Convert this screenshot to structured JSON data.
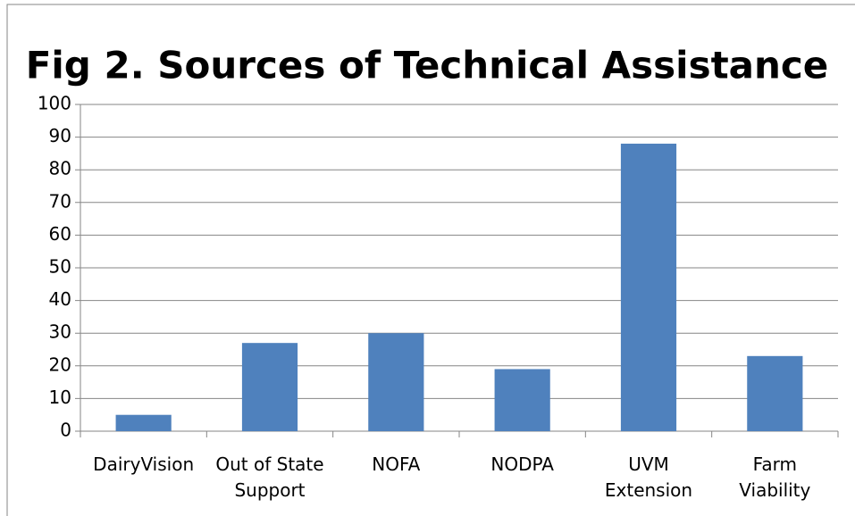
{
  "chart_data": {
    "type": "bar",
    "title": "Fig 2. Sources of Technical Assistance",
    "categories": [
      "DairyVision",
      "Out of State Support",
      "NOFA",
      "NODPA",
      "UVM Extension",
      "Farm Viability"
    ],
    "values": [
      5,
      27,
      30,
      19,
      88,
      23
    ],
    "color": "#4f81bd",
    "ylim": [
      0,
      100
    ],
    "yticks": [
      0,
      10,
      20,
      30,
      40,
      50,
      60,
      70,
      80,
      90,
      100
    ],
    "grid": true
  }
}
